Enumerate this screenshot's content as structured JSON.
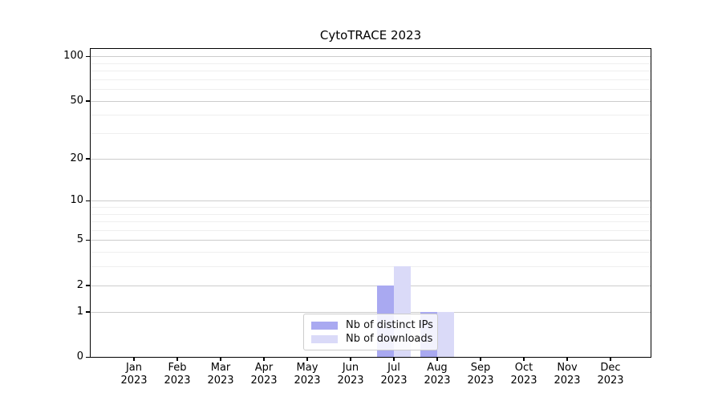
{
  "figure": {
    "title": "CytoTRACE 2023"
  },
  "chart_data": {
    "type": "bar",
    "title": "CytoTRACE 2023",
    "xlabel": "",
    "ylabel": "",
    "yscale": "log1p",
    "ylim": [
      0,
      111
    ],
    "y_major_ticks": [
      0,
      1,
      2,
      5,
      10,
      20,
      50,
      100
    ],
    "y_minor_gridlines": [
      3,
      4,
      6,
      7,
      8,
      9,
      30,
      40,
      60,
      70,
      80,
      90
    ],
    "grid": "horizontal, major and minor, on",
    "legend_position": "lower center",
    "categories": [
      {
        "month": "Jan",
        "year": "2023"
      },
      {
        "month": "Feb",
        "year": "2023"
      },
      {
        "month": "Mar",
        "year": "2023"
      },
      {
        "month": "Apr",
        "year": "2023"
      },
      {
        "month": "May",
        "year": "2023"
      },
      {
        "month": "Jun",
        "year": "2023"
      },
      {
        "month": "Jul",
        "year": "2023"
      },
      {
        "month": "Aug",
        "year": "2023"
      },
      {
        "month": "Sep",
        "year": "2023"
      },
      {
        "month": "Oct",
        "year": "2023"
      },
      {
        "month": "Nov",
        "year": "2023"
      },
      {
        "month": "Dec",
        "year": "2023"
      }
    ],
    "series": [
      {
        "name": "Nb of distinct IPs",
        "color": "#a9a9f1",
        "values": [
          0,
          0,
          0,
          0,
          0,
          0,
          2,
          1,
          0,
          0,
          0,
          0
        ]
      },
      {
        "name": "Nb of downloads",
        "color": "#dadaf8",
        "values": [
          0,
          0,
          0,
          0,
          0,
          0,
          3,
          1,
          0,
          0,
          0,
          0
        ]
      }
    ]
  }
}
